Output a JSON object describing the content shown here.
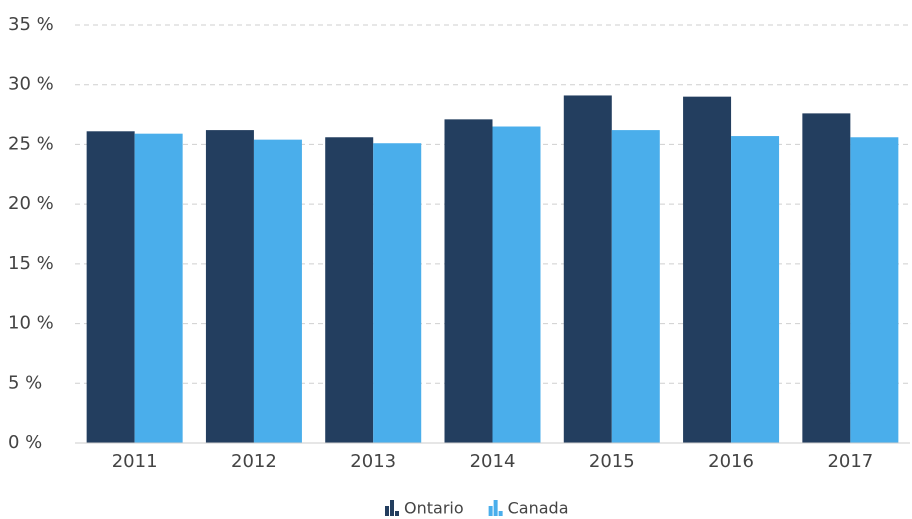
{
  "chart_data": {
    "type": "bar",
    "categories": [
      "2011",
      "2012",
      "2013",
      "2014",
      "2015",
      "2016",
      "2017"
    ],
    "series": [
      {
        "name": "Ontario",
        "color": "#233e5f",
        "values": [
          26.1,
          26.2,
          25.6,
          27.1,
          29.1,
          29.0,
          27.6
        ]
      },
      {
        "name": "Canada",
        "color": "#4aaeeb",
        "values": [
          25.9,
          25.4,
          25.1,
          26.5,
          26.2,
          25.7,
          25.6
        ]
      }
    ],
    "ylim": [
      0,
      35
    ],
    "yticks": [
      {
        "value": 0,
        "label": "0 %"
      },
      {
        "value": 5,
        "label": "5 %"
      },
      {
        "value": 10,
        "label": "10 %"
      },
      {
        "value": 15,
        "label": "15 %"
      },
      {
        "value": 20,
        "label": "20 %"
      },
      {
        "value": 25,
        "label": "25 %"
      },
      {
        "value": 30,
        "label": "30 %"
      },
      {
        "value": 35,
        "label": "35 %"
      }
    ],
    "grid": true,
    "legend": "bottom"
  }
}
